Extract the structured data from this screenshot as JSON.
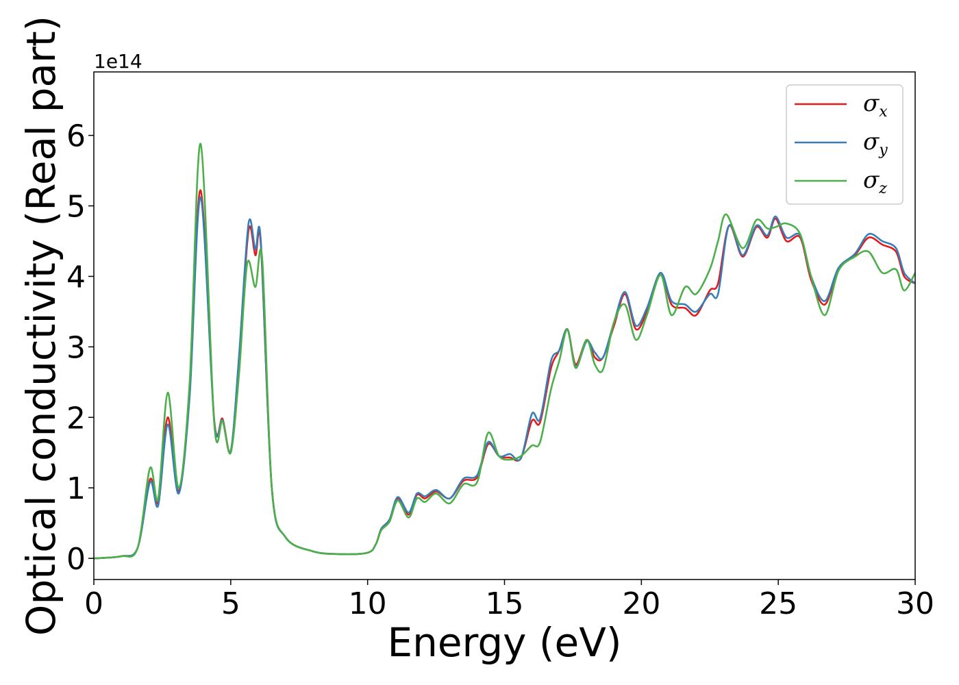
{
  "chart_data": {
    "type": "line",
    "xlabel": "Energy (eV)",
    "ylabel": "Optical conductivity (Real part)",
    "y_offset_text": "1e14",
    "xlim": [
      0,
      30
    ],
    "ylim": [
      -0.3,
      6.9
    ],
    "x_ticks": [
      0,
      5,
      10,
      15,
      20,
      25,
      30
    ],
    "y_ticks": [
      0,
      1,
      2,
      3,
      4,
      5,
      6
    ],
    "grid": false,
    "legend_position": "top-right",
    "series": [
      {
        "name": "σx",
        "symbol": "σ",
        "subscript": "x",
        "color": "#e41a1c",
        "points": [
          [
            0,
            0
          ],
          [
            1,
            0.03
          ],
          [
            1.6,
            0.15
          ],
          [
            2.05,
            1.12
          ],
          [
            2.35,
            0.8
          ],
          [
            2.7,
            2.0
          ],
          [
            3.1,
            0.95
          ],
          [
            3.5,
            2.4
          ],
          [
            3.9,
            5.22
          ],
          [
            4.4,
            1.95
          ],
          [
            4.7,
            1.98
          ],
          [
            5.0,
            1.52
          ],
          [
            5.3,
            2.8
          ],
          [
            5.65,
            4.65
          ],
          [
            5.9,
            4.3
          ],
          [
            6.1,
            4.45
          ],
          [
            6.5,
            1.0
          ],
          [
            7.0,
            0.3
          ],
          [
            8.0,
            0.1
          ],
          [
            9.0,
            0.06
          ],
          [
            10.0,
            0.08
          ],
          [
            10.3,
            0.2
          ],
          [
            10.5,
            0.42
          ],
          [
            10.8,
            0.55
          ],
          [
            11.1,
            0.85
          ],
          [
            11.5,
            0.62
          ],
          [
            11.8,
            0.9
          ],
          [
            12.1,
            0.85
          ],
          [
            12.5,
            0.95
          ],
          [
            13.0,
            0.85
          ],
          [
            13.5,
            1.1
          ],
          [
            14.0,
            1.15
          ],
          [
            14.4,
            1.62
          ],
          [
            14.8,
            1.45
          ],
          [
            15.2,
            1.43
          ],
          [
            15.6,
            1.42
          ],
          [
            16.0,
            1.95
          ],
          [
            16.3,
            1.93
          ],
          [
            16.7,
            2.7
          ],
          [
            17.0,
            2.95
          ],
          [
            17.3,
            3.25
          ],
          [
            17.6,
            2.75
          ],
          [
            18.0,
            3.1
          ],
          [
            18.3,
            2.85
          ],
          [
            18.6,
            2.85
          ],
          [
            19.0,
            3.3
          ],
          [
            19.4,
            3.75
          ],
          [
            19.8,
            3.25
          ],
          [
            20.2,
            3.5
          ],
          [
            20.7,
            4.05
          ],
          [
            21.1,
            3.6
          ],
          [
            21.6,
            3.55
          ],
          [
            22.0,
            3.45
          ],
          [
            22.5,
            3.8
          ],
          [
            22.8,
            3.9
          ],
          [
            23.2,
            4.72
          ],
          [
            23.7,
            4.28
          ],
          [
            24.2,
            4.7
          ],
          [
            24.6,
            4.55
          ],
          [
            24.9,
            4.82
          ],
          [
            25.3,
            4.5
          ],
          [
            25.8,
            4.55
          ],
          [
            26.2,
            3.95
          ],
          [
            26.7,
            3.6
          ],
          [
            27.2,
            4.1
          ],
          [
            27.8,
            4.3
          ],
          [
            28.3,
            4.55
          ],
          [
            28.8,
            4.45
          ],
          [
            29.3,
            4.35
          ],
          [
            29.6,
            4.0
          ],
          [
            30.0,
            3.9
          ]
        ]
      },
      {
        "name": "σy",
        "symbol": "σ",
        "subscript": "y",
        "color": "#377eb8",
        "points": [
          [
            0,
            0
          ],
          [
            1,
            0.03
          ],
          [
            1.6,
            0.15
          ],
          [
            2.05,
            1.08
          ],
          [
            2.35,
            0.75
          ],
          [
            2.7,
            1.9
          ],
          [
            3.1,
            0.92
          ],
          [
            3.5,
            2.3
          ],
          [
            3.9,
            5.12
          ],
          [
            4.4,
            1.93
          ],
          [
            4.7,
            1.96
          ],
          [
            5.0,
            1.52
          ],
          [
            5.3,
            2.85
          ],
          [
            5.65,
            4.75
          ],
          [
            5.9,
            4.38
          ],
          [
            6.1,
            4.5
          ],
          [
            6.5,
            1.0
          ],
          [
            7.0,
            0.3
          ],
          [
            8.0,
            0.1
          ],
          [
            9.0,
            0.06
          ],
          [
            10.0,
            0.08
          ],
          [
            10.3,
            0.2
          ],
          [
            10.5,
            0.42
          ],
          [
            10.8,
            0.55
          ],
          [
            11.1,
            0.87
          ],
          [
            11.5,
            0.65
          ],
          [
            11.8,
            0.92
          ],
          [
            12.1,
            0.88
          ],
          [
            12.5,
            0.97
          ],
          [
            13.0,
            0.85
          ],
          [
            13.5,
            1.13
          ],
          [
            14.0,
            1.18
          ],
          [
            14.4,
            1.65
          ],
          [
            14.8,
            1.45
          ],
          [
            15.2,
            1.48
          ],
          [
            15.6,
            1.42
          ],
          [
            16.0,
            2.05
          ],
          [
            16.3,
            1.98
          ],
          [
            16.7,
            2.8
          ],
          [
            17.0,
            2.95
          ],
          [
            17.3,
            3.25
          ],
          [
            17.6,
            2.72
          ],
          [
            18.0,
            3.08
          ],
          [
            18.3,
            2.92
          ],
          [
            18.6,
            2.85
          ],
          [
            19.0,
            3.35
          ],
          [
            19.4,
            3.78
          ],
          [
            19.8,
            3.3
          ],
          [
            20.2,
            3.55
          ],
          [
            20.7,
            4.05
          ],
          [
            21.1,
            3.65
          ],
          [
            21.6,
            3.6
          ],
          [
            22.0,
            3.5
          ],
          [
            22.5,
            3.75
          ],
          [
            22.8,
            3.75
          ],
          [
            23.2,
            4.72
          ],
          [
            23.7,
            4.3
          ],
          [
            24.2,
            4.72
          ],
          [
            24.6,
            4.58
          ],
          [
            24.9,
            4.85
          ],
          [
            25.3,
            4.55
          ],
          [
            25.8,
            4.58
          ],
          [
            26.2,
            4.0
          ],
          [
            26.7,
            3.65
          ],
          [
            27.2,
            4.12
          ],
          [
            27.8,
            4.32
          ],
          [
            28.3,
            4.6
          ],
          [
            28.8,
            4.5
          ],
          [
            29.3,
            4.4
          ],
          [
            29.6,
            4.05
          ],
          [
            30.0,
            3.9
          ]
        ]
      },
      {
        "name": "σz",
        "symbol": "σ",
        "subscript": "z",
        "color": "#4daf4a",
        "points": [
          [
            0,
            0
          ],
          [
            1,
            0.03
          ],
          [
            1.6,
            0.15
          ],
          [
            2.05,
            1.28
          ],
          [
            2.35,
            0.85
          ],
          [
            2.7,
            2.35
          ],
          [
            3.1,
            1.0
          ],
          [
            3.5,
            2.5
          ],
          [
            3.9,
            5.88
          ],
          [
            4.4,
            1.9
          ],
          [
            4.7,
            1.95
          ],
          [
            5.0,
            1.5
          ],
          [
            5.3,
            2.6
          ],
          [
            5.6,
            4.18
          ],
          [
            5.9,
            3.85
          ],
          [
            6.15,
            4.25
          ],
          [
            6.5,
            1.0
          ],
          [
            7.0,
            0.3
          ],
          [
            8.0,
            0.1
          ],
          [
            9.0,
            0.06
          ],
          [
            10.0,
            0.08
          ],
          [
            10.3,
            0.2
          ],
          [
            10.5,
            0.4
          ],
          [
            10.8,
            0.52
          ],
          [
            11.1,
            0.82
          ],
          [
            11.5,
            0.58
          ],
          [
            11.8,
            0.85
          ],
          [
            12.1,
            0.8
          ],
          [
            12.5,
            0.92
          ],
          [
            13.0,
            0.78
          ],
          [
            13.5,
            1.05
          ],
          [
            14.0,
            1.08
          ],
          [
            14.4,
            1.78
          ],
          [
            14.8,
            1.45
          ],
          [
            15.2,
            1.4
          ],
          [
            15.6,
            1.45
          ],
          [
            16.0,
            1.6
          ],
          [
            16.3,
            1.65
          ],
          [
            16.7,
            2.4
          ],
          [
            17.0,
            2.8
          ],
          [
            17.3,
            3.25
          ],
          [
            17.6,
            2.7
          ],
          [
            18.0,
            3.1
          ],
          [
            18.3,
            2.75
          ],
          [
            18.6,
            2.68
          ],
          [
            19.0,
            3.35
          ],
          [
            19.4,
            3.6
          ],
          [
            19.8,
            3.1
          ],
          [
            20.2,
            3.45
          ],
          [
            20.7,
            4.02
          ],
          [
            21.1,
            3.45
          ],
          [
            21.6,
            3.85
          ],
          [
            22.0,
            3.75
          ],
          [
            22.5,
            4.1
          ],
          [
            22.8,
            4.5
          ],
          [
            23.1,
            4.88
          ],
          [
            23.7,
            4.4
          ],
          [
            24.2,
            4.8
          ],
          [
            24.6,
            4.68
          ],
          [
            24.9,
            4.7
          ],
          [
            25.3,
            4.75
          ],
          [
            25.8,
            4.6
          ],
          [
            26.2,
            4.0
          ],
          [
            26.7,
            3.45
          ],
          [
            27.2,
            4.08
          ],
          [
            27.8,
            4.28
          ],
          [
            28.3,
            4.35
          ],
          [
            28.8,
            4.05
          ],
          [
            29.3,
            4.1
          ],
          [
            29.6,
            3.8
          ],
          [
            30.0,
            4.05
          ]
        ]
      }
    ]
  }
}
